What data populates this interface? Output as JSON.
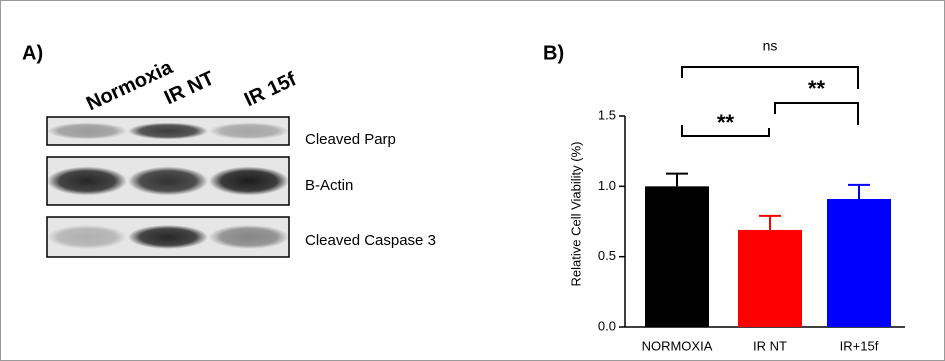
{
  "blot": {
    "panel_label": "A)",
    "lanes": [
      "Normoxia",
      "IR NT",
      "IR 15f"
    ],
    "proteins": [
      "Cleaved Parp",
      "B-Actin",
      "Cleaved Caspase 3"
    ]
  },
  "chart_data": {
    "type": "bar",
    "panel_label": "B)",
    "y_label": "Relative Cell Viability (%)",
    "categories": [
      "NORMOXIA",
      "IR NT",
      "IR+15f"
    ],
    "values": [
      1.0,
      0.69,
      0.91
    ],
    "errors": [
      0.09,
      0.1,
      0.1
    ],
    "colors": [
      "#000000",
      "#ff0000",
      "#0000ff"
    ],
    "ylim": [
      0,
      1.5
    ],
    "yticks": [
      {
        "value": 0,
        "label": "0.0"
      },
      {
        "value": 0.5,
        "label": "0.5"
      },
      {
        "value": 1,
        "label": "1.0"
      },
      {
        "value": 1.5,
        "label": "1.5"
      }
    ],
    "brackets": [
      {
        "from": 0,
        "to": 2,
        "label": "ns"
      },
      {
        "from": 1,
        "to": 2,
        "label": "**"
      },
      {
        "from": 0,
        "to": 1,
        "label": "**"
      }
    ]
  }
}
